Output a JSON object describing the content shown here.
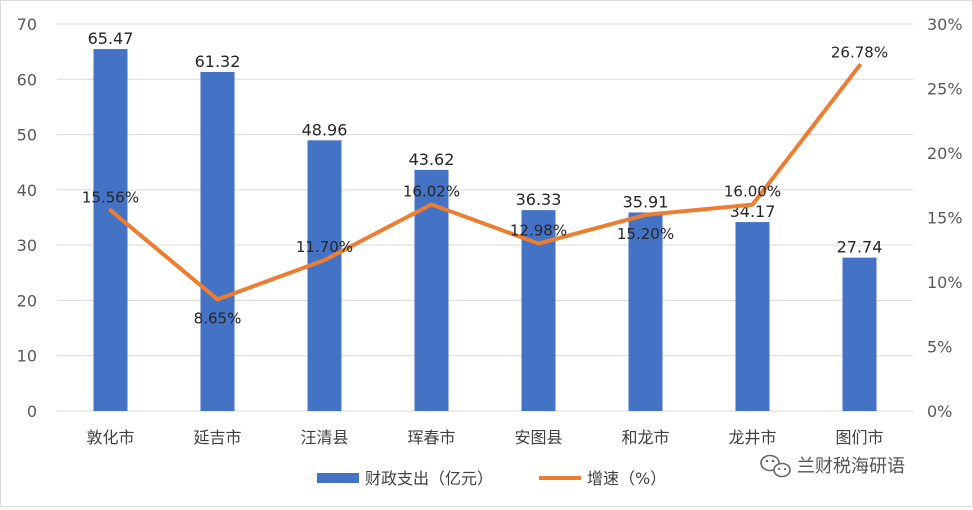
{
  "chart_data": {
    "type": "bar",
    "categories": [
      "敦化市",
      "延吉市",
      "汪清县",
      "珲春市",
      "安图县",
      "和龙市",
      "龙井市",
      "图们市"
    ],
    "series": [
      {
        "name": "财政支出（亿元）",
        "type": "bar",
        "axis": "left",
        "color": "#4472C4",
        "values": [
          65.47,
          61.32,
          48.96,
          43.62,
          36.33,
          35.91,
          34.17,
          27.74
        ],
        "labels": [
          "65.47",
          "61.32",
          "48.96",
          "43.62",
          "36.33",
          "35.91",
          "34.17",
          "27.74"
        ]
      },
      {
        "name": "增速（%）",
        "type": "line",
        "axis": "right",
        "color": "#ED7D31",
        "values": [
          15.56,
          8.65,
          11.7,
          16.02,
          12.98,
          15.2,
          16.0,
          26.78
        ],
        "labels": [
          "15.56%",
          "8.65%",
          "11.70%",
          "16.02%",
          "12.98%",
          "15.20%",
          "16.00%",
          "26.78%"
        ]
      }
    ],
    "y_left": {
      "min": 0,
      "max": 70,
      "step": 10,
      "ticks": [
        "0",
        "10",
        "20",
        "30",
        "40",
        "50",
        "60",
        "70"
      ]
    },
    "y_right": {
      "min": 0,
      "max": 30,
      "step": 5,
      "ticks": [
        "0%",
        "5%",
        "10%",
        "15%",
        "20%",
        "25%",
        "30%"
      ]
    },
    "grid": true,
    "legend": "bottom"
  },
  "watermark": {
    "text": "兰财税海研语",
    "icon": "wechat-icon"
  }
}
